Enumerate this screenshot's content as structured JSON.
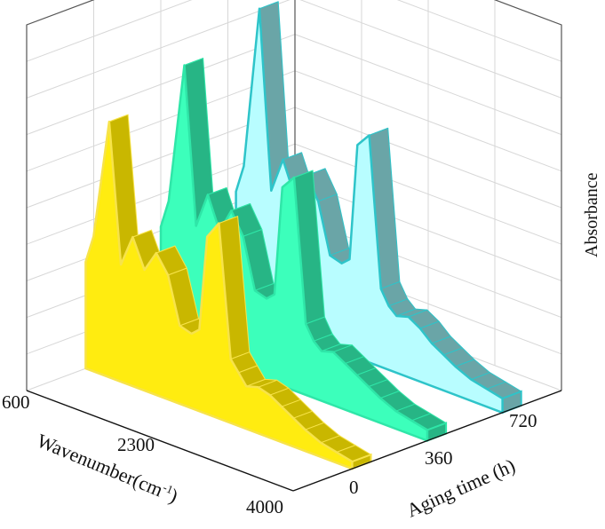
{
  "chart_data": {
    "type": "3d-waterfall",
    "x_axis": {
      "label": "Wavenumber(cm",
      "label_sup": "-1",
      "label_close": ")",
      "ticks": [
        "600",
        "2300",
        "4000"
      ],
      "range": [
        600,
        4000
      ]
    },
    "y_axis": {
      "label": "Aging time (h)",
      "ticks": [
        "0",
        "360",
        "720"
      ]
    },
    "z_axis": {
      "label": "Absorbance"
    },
    "grid": true,
    "series": [
      {
        "aging_time": "0",
        "color": "#ffec10",
        "edge": "#f7e34a",
        "side": "#c9b700",
        "wavenumber": [
          600,
          700,
          900,
          1050,
          1200,
          1350,
          1500,
          1650,
          1800,
          1950,
          2050,
          2150,
          2300,
          2450,
          2550,
          2650,
          2800,
          2950,
          3100,
          3250,
          3400,
          3600,
          3800,
          4000
        ],
        "absorbance": [
          0.3,
          0.38,
          0.72,
          0.33,
          0.42,
          0.34,
          0.4,
          0.35,
          0.22,
          0.21,
          0.23,
          0.5,
          0.55,
          0.18,
          0.15,
          0.12,
          0.13,
          0.12,
          0.1,
          0.08,
          0.06,
          0.04,
          0.03,
          0.02
        ]
      },
      {
        "aging_time": "360",
        "color": "#3cffbb",
        "edge": "#2fe6a8",
        "side": "#27b585",
        "wavenumber": [
          600,
          700,
          900,
          1050,
          1200,
          1350,
          1500,
          1650,
          1800,
          1950,
          2050,
          2150,
          2300,
          2450,
          2550,
          2650,
          2800,
          2950,
          3100,
          3250,
          3400,
          3600,
          3800,
          4000
        ],
        "absorbance": [
          0.32,
          0.4,
          0.8,
          0.36,
          0.46,
          0.37,
          0.44,
          0.38,
          0.24,
          0.23,
          0.25,
          0.56,
          0.6,
          0.2,
          0.16,
          0.14,
          0.15,
          0.13,
          0.11,
          0.09,
          0.07,
          0.05,
          0.04,
          0.03
        ]
      },
      {
        "aging_time": "720",
        "color": "#b8fdff",
        "edge": "#2ec4c9",
        "side": "#6aa5a7",
        "wavenumber": [
          600,
          700,
          900,
          1050,
          1200,
          1350,
          1500,
          1650,
          1800,
          1950,
          2050,
          2150,
          2300,
          2450,
          2550,
          2650,
          2800,
          2950,
          3100,
          3250,
          3400,
          3600,
          3800,
          4000
        ],
        "absorbance": [
          0.34,
          0.42,
          0.88,
          0.38,
          0.48,
          0.39,
          0.46,
          0.4,
          0.26,
          0.25,
          0.27,
          0.6,
          0.64,
          0.22,
          0.18,
          0.16,
          0.17,
          0.15,
          0.12,
          0.1,
          0.08,
          0.06,
          0.05,
          0.04
        ]
      }
    ]
  }
}
